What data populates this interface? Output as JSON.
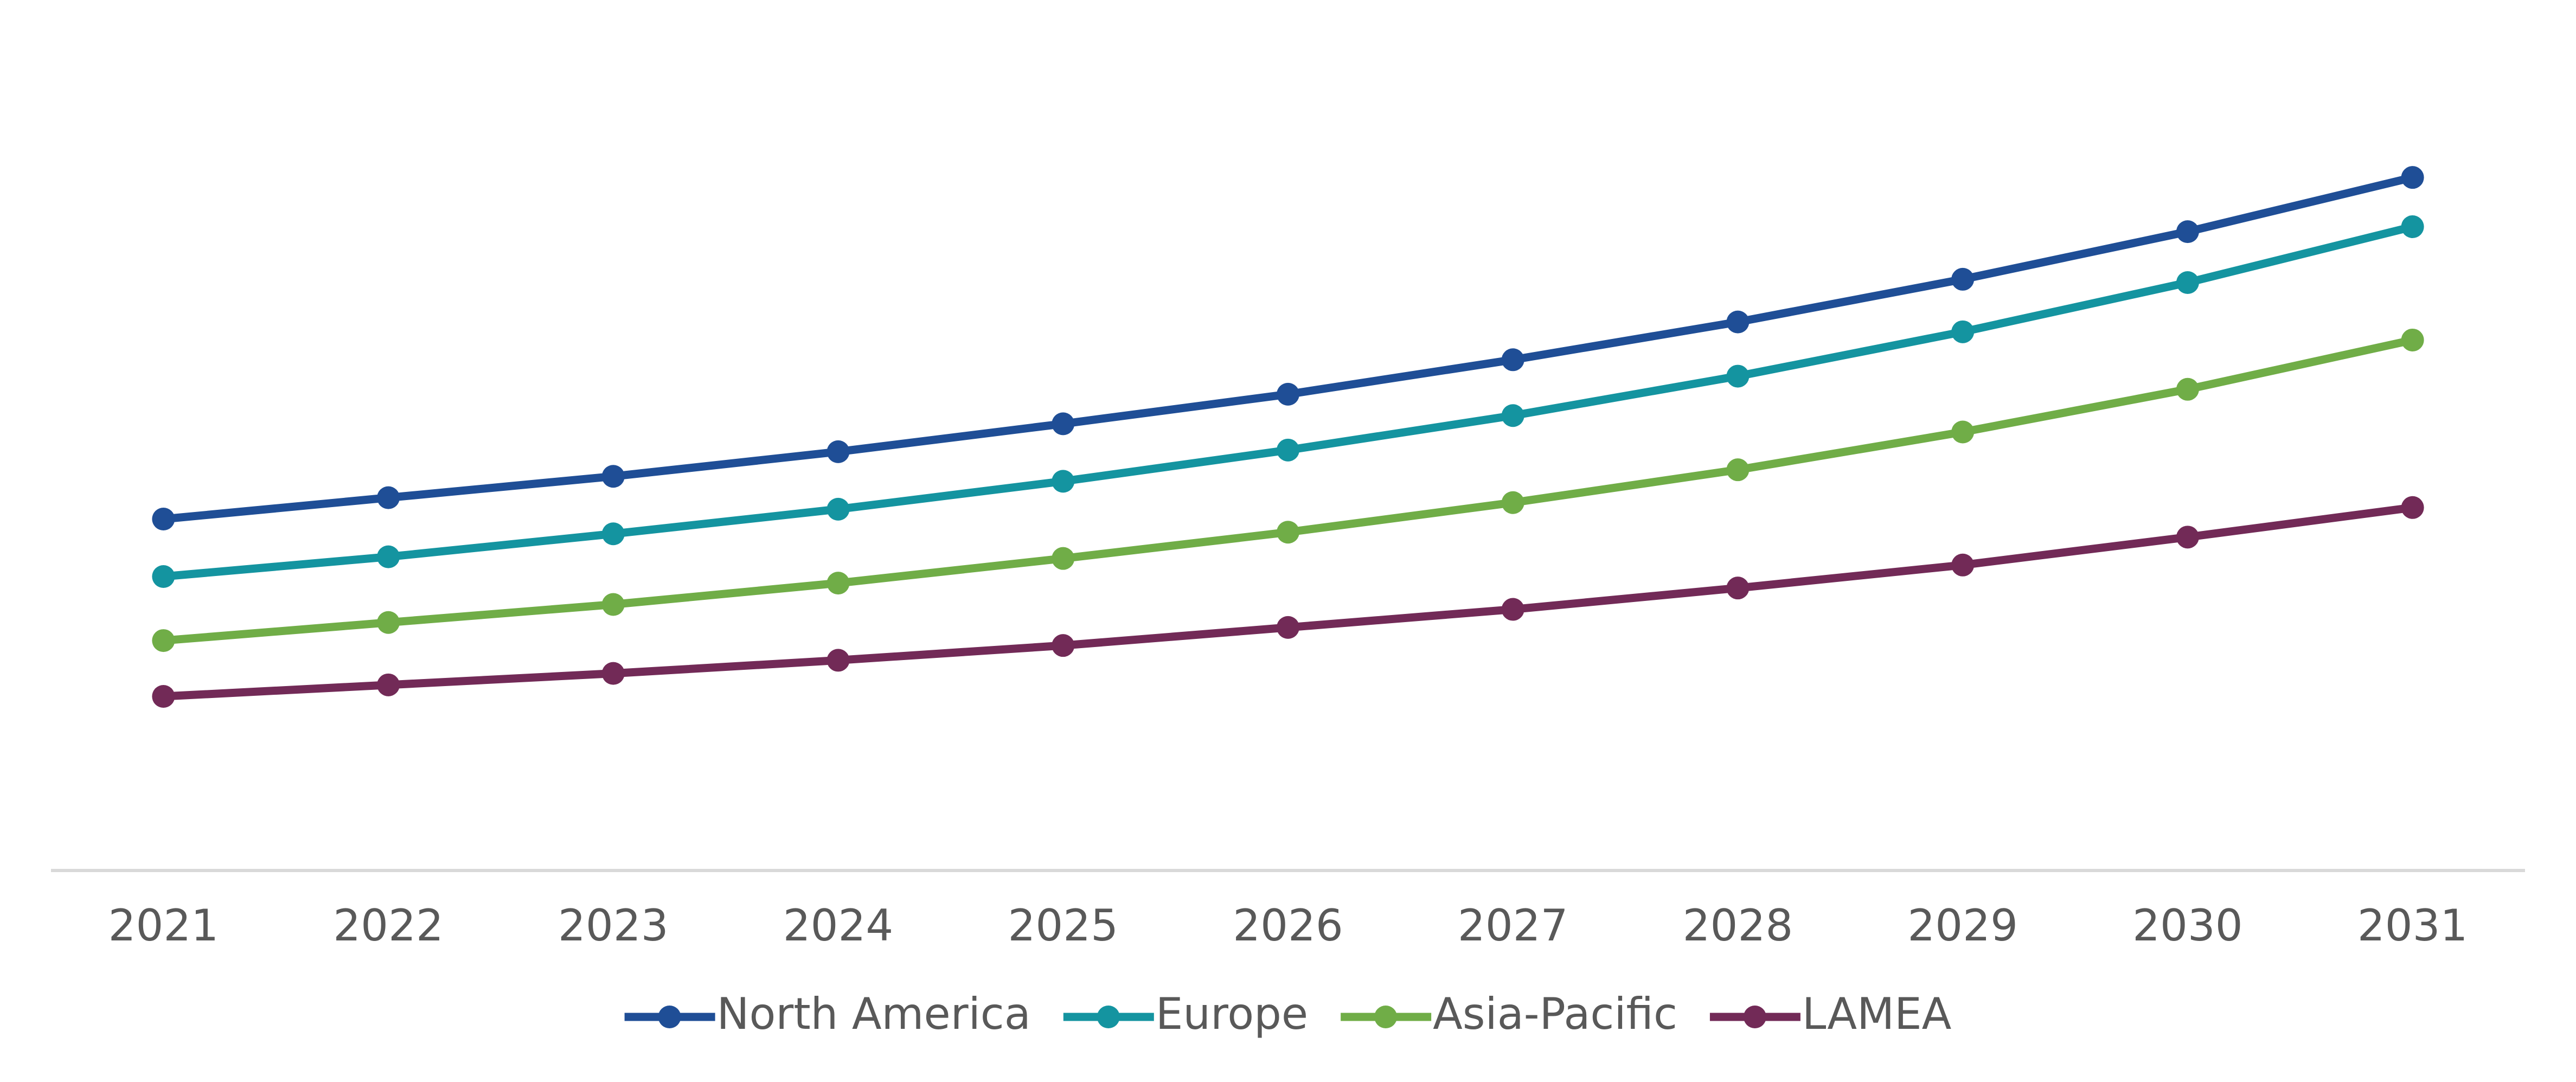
{
  "chart_data": {
    "type": "line",
    "categories": [
      "2021",
      "2022",
      "2023",
      "2024",
      "2025",
      "2026",
      "2027",
      "2028",
      "2029",
      "2030",
      "2031"
    ],
    "series": [
      {
        "name": "North America",
        "color": "#1f4e96",
        "values": [
          214,
          227,
          240,
          255,
          272,
          290,
          311,
          334,
          360,
          389,
          422
        ]
      },
      {
        "name": "Europe",
        "color": "#1494a0",
        "values": [
          179,
          191,
          205,
          220,
          237,
          256,
          277,
          301,
          328,
          358,
          392
        ]
      },
      {
        "name": "Asia-Pacific",
        "color": "#70ad47",
        "values": [
          140,
          151,
          162,
          175,
          190,
          206,
          224,
          244,
          267,
          293,
          323
        ]
      },
      {
        "name": "LAMEA",
        "color": "#722a57",
        "values": [
          106,
          113,
          120,
          128,
          137,
          148,
          159,
          172,
          186,
          203,
          221
        ]
      }
    ],
    "ylim": [
      0,
      500
    ],
    "grid": false,
    "legend": "bottom"
  }
}
